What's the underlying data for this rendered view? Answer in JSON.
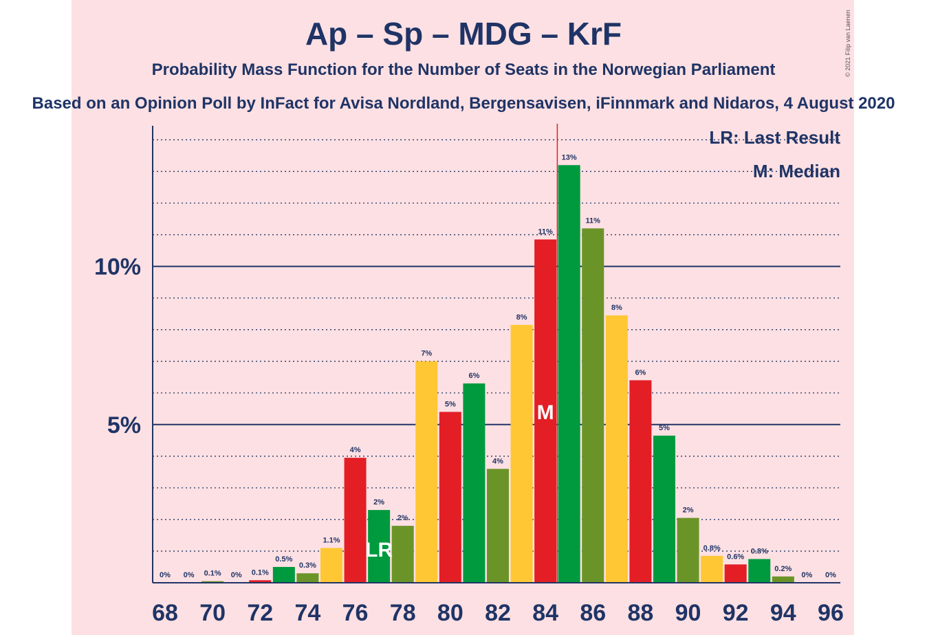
{
  "chart_data": {
    "type": "bar",
    "title": "Ap – Sp – MDG – KrF",
    "subtitle": "Probability Mass Function for the Number of Seats in the Norwegian Parliament",
    "subtitle2": "Based on an Opinion Poll by InFact for Avisa Nordland, Bergensavisen, iFinnmark and Nidaros, 4 August 2020",
    "copyright": "© 2021 Filip van Laenen",
    "legend": {
      "lr": "LR: Last Result",
      "median": "M: Median",
      "placement": "top-right"
    },
    "markers": {
      "last_result": {
        "seat": 77,
        "label": "LR"
      },
      "median": {
        "seat": 84,
        "label": "M"
      },
      "majority_line_after": 84
    },
    "ylim": [
      0,
      14.4
    ],
    "y_ticks": [
      {
        "value": 5,
        "label": "5%"
      },
      {
        "value": 10,
        "label": "10%"
      }
    ],
    "y_minor_step": 1,
    "x_ticks": [
      68,
      70,
      72,
      74,
      76,
      78,
      80,
      82,
      84,
      86,
      88,
      90,
      92,
      94,
      96
    ],
    "bar_colors": [
      "#e31e25",
      "#009a3e",
      "#6b9428",
      "#ffc733"
    ],
    "x": [
      68,
      69,
      70,
      71,
      72,
      73,
      74,
      75,
      76,
      77,
      78,
      79,
      80,
      81,
      82,
      83,
      84,
      85,
      86,
      87,
      88,
      89,
      90,
      91,
      92,
      93,
      94,
      95,
      96
    ],
    "values": [
      0,
      0,
      0.05,
      0,
      0.08,
      0.5,
      0.3,
      1.1,
      3.95,
      2.3,
      1.8,
      7.0,
      5.4,
      6.3,
      3.6,
      8.15,
      10.85,
      13.2,
      11.2,
      8.45,
      6.4,
      4.65,
      2.05,
      0.85,
      0.58,
      0.75,
      0.2,
      0,
      0
    ],
    "labels": [
      "0%",
      "0%",
      "0.1%",
      "0%",
      "0.1%",
      "0.5%",
      "0.3%",
      "1.1%",
      "4%",
      "2%",
      "2%",
      "7%",
      "5%",
      "6%",
      "4%",
      "8%",
      "11%",
      "13%",
      "11%",
      "8%",
      "6%",
      "5%",
      "2%",
      "0.8%",
      "0.6%",
      "0.8%",
      "0.2%",
      "0%",
      "0%"
    ]
  }
}
